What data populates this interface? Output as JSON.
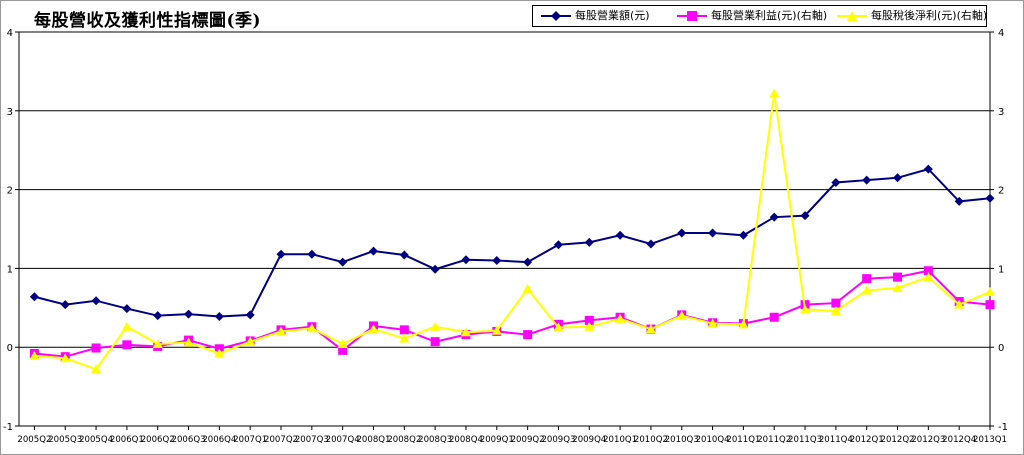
{
  "chart_data": {
    "type": "line",
    "title": "每股營收及獲利性指標圖(季)",
    "categories": [
      "2005Q2",
      "2005Q3",
      "2005Q4",
      "2006Q1",
      "2006Q2",
      "2006Q3",
      "2006Q4",
      "2007Q1",
      "2007Q2",
      "2007Q3",
      "2007Q4",
      "2008Q1",
      "2008Q2",
      "2008Q3",
      "2008Q4",
      "2009Q1",
      "2009Q2",
      "2009Q3",
      "2009Q4",
      "2010Q1",
      "2010Q2",
      "2010Q3",
      "2010Q4",
      "2011Q1",
      "2011Q2",
      "2011Q3",
      "2011Q4",
      "2012Q1",
      "2012Q2",
      "2012Q3",
      "2012Q4",
      "2013Q1"
    ],
    "ylim": [
      -1,
      4
    ],
    "y2lim": [
      -1,
      4
    ],
    "yticks": [
      "-1",
      "0",
      "1",
      "2",
      "3",
      "4"
    ],
    "y2ticks": [
      "-1",
      "0",
      "1",
      "2",
      "3",
      "4"
    ],
    "grid": true,
    "legend_position": "top-right",
    "series": [
      {
        "name": "每股營業額(元)",
        "color": "#000080",
        "marker": "diamond",
        "axis": "left",
        "values": [
          0.64,
          0.54,
          0.59,
          0.49,
          0.4,
          0.42,
          0.39,
          0.41,
          1.18,
          1.18,
          1.08,
          1.22,
          1.17,
          0.99,
          1.11,
          1.1,
          1.08,
          1.3,
          1.33,
          1.42,
          1.31,
          1.45,
          1.45,
          1.42,
          1.65,
          1.67,
          2.09,
          2.12,
          2.15,
          2.26,
          1.85,
          1.89
        ]
      },
      {
        "name": "每股營業利益(元)(右軸)",
        "color": "#ff00ff",
        "marker": "square",
        "axis": "right",
        "values": [
          -0.08,
          -0.12,
          -0.01,
          0.03,
          0.01,
          0.09,
          -0.02,
          0.08,
          0.22,
          0.26,
          -0.04,
          0.27,
          0.22,
          0.07,
          0.16,
          0.2,
          0.16,
          0.29,
          0.34,
          0.38,
          0.23,
          0.41,
          0.31,
          0.3,
          0.38,
          0.54,
          0.56,
          0.87,
          0.89,
          0.97,
          0.58,
          0.54
        ]
      },
      {
        "name": "每股稅後淨利(元)(右軸)",
        "color": "#ffff00",
        "marker": "triangle",
        "axis": "right",
        "values": [
          -0.11,
          -0.14,
          -0.28,
          0.26,
          0.04,
          0.06,
          -0.08,
          0.07,
          0.2,
          0.24,
          0.04,
          0.23,
          0.11,
          0.26,
          0.19,
          0.21,
          0.74,
          0.25,
          0.26,
          0.36,
          0.23,
          0.4,
          0.3,
          0.29,
          3.22,
          0.48,
          0.46,
          0.72,
          0.75,
          0.89,
          0.54,
          0.7
        ]
      }
    ]
  }
}
